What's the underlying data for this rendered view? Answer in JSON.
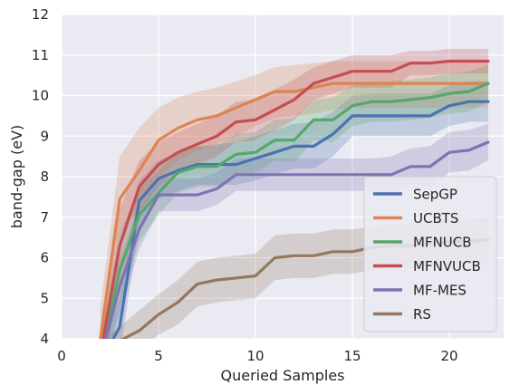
{
  "chart_data": {
    "type": "line",
    "xlabel": "Queried Samples",
    "ylabel": "band-gap (eV)",
    "xlim": [
      0,
      22.8
    ],
    "ylim": [
      4,
      12
    ],
    "x_ticks": [
      0,
      5,
      10,
      15,
      20
    ],
    "y_ticks": [
      4,
      5,
      6,
      7,
      8,
      9,
      10,
      11,
      12
    ],
    "grid": true,
    "background": "#eaeaf2",
    "legend_position": "bottom-right",
    "series": [
      {
        "name": "SepGP",
        "color": "#4c72b0",
        "x": [
          2,
          3,
          4,
          5,
          6,
          7,
          8,
          9,
          10,
          11,
          12,
          13,
          14,
          15,
          16,
          17,
          18,
          19,
          20,
          21,
          22
        ],
        "y": [
          3.4,
          4.3,
          7.4,
          7.95,
          8.15,
          8.3,
          8.3,
          8.3,
          8.45,
          8.6,
          8.75,
          8.75,
          9.05,
          9.5,
          9.5,
          9.5,
          9.5,
          9.5,
          9.75,
          9.85,
          9.85
        ],
        "upper": [
          3.9,
          5.0,
          7.9,
          8.4,
          8.6,
          8.75,
          8.8,
          8.85,
          9.0,
          9.15,
          9.3,
          9.35,
          9.6,
          10.0,
          10.05,
          10.05,
          10.05,
          10.05,
          10.25,
          10.35,
          10.35
        ],
        "lower": [
          2.9,
          3.6,
          6.8,
          7.45,
          7.65,
          7.8,
          7.8,
          7.8,
          7.9,
          8.05,
          8.2,
          8.2,
          8.5,
          9.0,
          9.0,
          9.0,
          9.0,
          9.0,
          9.25,
          9.35,
          9.35
        ]
      },
      {
        "name": "UCBTS",
        "color": "#dd8452",
        "x": [
          2,
          3,
          4,
          5,
          6,
          7,
          8,
          9,
          10,
          11,
          12,
          13,
          14,
          15,
          16,
          17,
          18,
          19,
          20,
          21,
          22
        ],
        "y": [
          4.0,
          7.45,
          8.15,
          8.9,
          9.2,
          9.4,
          9.5,
          9.7,
          9.9,
          10.1,
          10.1,
          10.2,
          10.3,
          10.3,
          10.3,
          10.3,
          10.3,
          10.3,
          10.3,
          10.3,
          10.3
        ],
        "upper": [
          4.8,
          8.5,
          9.2,
          9.7,
          9.95,
          10.1,
          10.2,
          10.35,
          10.5,
          10.7,
          10.75,
          10.8,
          10.85,
          10.85,
          10.85,
          10.85,
          10.85,
          10.85,
          10.85,
          10.85,
          10.85
        ],
        "lower": [
          3.3,
          6.6,
          7.2,
          8.0,
          8.4,
          8.65,
          8.8,
          9.0,
          9.25,
          9.45,
          9.5,
          9.55,
          9.65,
          9.7,
          9.7,
          9.7,
          9.7,
          9.7,
          9.7,
          9.7,
          9.7
        ]
      },
      {
        "name": "MFNUCB",
        "color": "#55a868",
        "x": [
          2,
          3,
          4,
          5,
          6,
          7,
          8,
          9,
          10,
          11,
          12,
          13,
          14,
          15,
          16,
          17,
          18,
          19,
          20,
          21,
          22
        ],
        "y": [
          3.5,
          5.7,
          7.05,
          7.6,
          8.1,
          8.25,
          8.25,
          8.55,
          8.6,
          8.9,
          8.9,
          9.4,
          9.4,
          9.75,
          9.85,
          9.85,
          9.9,
          9.95,
          10.05,
          10.1,
          10.3
        ],
        "upper": [
          4.1,
          6.6,
          7.7,
          8.15,
          8.6,
          8.75,
          8.75,
          9.05,
          9.1,
          9.4,
          9.45,
          9.9,
          9.95,
          10.25,
          10.35,
          10.35,
          10.4,
          10.45,
          10.55,
          10.6,
          10.75
        ],
        "lower": [
          2.9,
          4.8,
          6.4,
          7.05,
          7.6,
          7.75,
          7.75,
          8.05,
          8.1,
          8.4,
          8.35,
          8.9,
          8.85,
          9.25,
          9.35,
          9.35,
          9.4,
          9.45,
          9.55,
          9.6,
          9.85
        ]
      },
      {
        "name": "MFNVUCB",
        "color": "#c44e52",
        "x": [
          2,
          3,
          4,
          5,
          6,
          7,
          8,
          9,
          10,
          11,
          12,
          13,
          14,
          15,
          16,
          17,
          18,
          19,
          20,
          21,
          22
        ],
        "y": [
          3.6,
          6.3,
          7.75,
          8.3,
          8.6,
          8.8,
          9.0,
          9.35,
          9.4,
          9.65,
          9.9,
          10.3,
          10.45,
          10.6,
          10.6,
          10.6,
          10.8,
          10.8,
          10.85,
          10.85,
          10.85
        ],
        "upper": [
          4.3,
          7.2,
          8.4,
          8.85,
          9.1,
          9.3,
          9.5,
          9.85,
          9.9,
          10.15,
          10.4,
          10.7,
          10.85,
          11.0,
          11.0,
          11.0,
          11.1,
          11.1,
          11.15,
          11.15,
          11.15
        ],
        "lower": [
          2.9,
          5.4,
          7.1,
          7.75,
          8.1,
          8.3,
          8.5,
          8.85,
          8.9,
          9.15,
          9.4,
          9.9,
          10.05,
          10.2,
          10.2,
          10.2,
          10.5,
          10.5,
          10.55,
          10.55,
          10.55
        ]
      },
      {
        "name": "MF-MES",
        "color": "#8172b3",
        "x": [
          2,
          3,
          4,
          5,
          6,
          7,
          8,
          9,
          10,
          11,
          12,
          13,
          14,
          15,
          16,
          17,
          18,
          19,
          20,
          21,
          22
        ],
        "y": [
          3.5,
          5.3,
          6.7,
          7.55,
          7.55,
          7.55,
          7.7,
          8.05,
          8.05,
          8.05,
          8.05,
          8.05,
          8.05,
          8.05,
          8.05,
          8.05,
          8.25,
          8.25,
          8.6,
          8.65,
          8.85
        ],
        "upper": [
          4.1,
          6.0,
          7.2,
          7.95,
          7.95,
          7.95,
          8.1,
          8.45,
          8.45,
          8.45,
          8.45,
          8.45,
          8.45,
          8.45,
          8.45,
          8.5,
          8.7,
          8.75,
          9.1,
          9.15,
          9.3
        ],
        "lower": [
          2.9,
          4.6,
          6.2,
          7.15,
          7.15,
          7.15,
          7.3,
          7.65,
          7.65,
          7.65,
          7.65,
          7.65,
          7.65,
          7.65,
          7.65,
          7.6,
          7.8,
          7.75,
          8.1,
          8.15,
          8.4
        ]
      },
      {
        "name": "RS",
        "color": "#937860",
        "x": [
          2,
          3,
          4,
          5,
          6,
          7,
          8,
          9,
          10,
          11,
          12,
          13,
          14,
          15,
          16,
          17,
          18,
          19,
          20,
          21,
          22
        ],
        "y": [
          3.6,
          3.95,
          4.2,
          4.6,
          4.9,
          5.35,
          5.45,
          5.5,
          5.55,
          6.0,
          6.05,
          6.05,
          6.15,
          6.15,
          6.25,
          6.3,
          6.3,
          6.35,
          6.4,
          6.4,
          6.45
        ],
        "upper": [
          3.9,
          4.3,
          4.7,
          5.1,
          5.45,
          5.9,
          6.0,
          6.05,
          6.1,
          6.55,
          6.6,
          6.6,
          6.7,
          6.7,
          6.75,
          6.85,
          6.85,
          6.9,
          6.95,
          6.95,
          7.0
        ],
        "lower": [
          3.3,
          3.6,
          3.7,
          4.1,
          4.35,
          4.8,
          4.9,
          4.95,
          5.0,
          5.45,
          5.5,
          5.5,
          5.6,
          5.6,
          5.7,
          5.75,
          5.75,
          5.8,
          5.85,
          5.85,
          5.9
        ]
      }
    ]
  }
}
